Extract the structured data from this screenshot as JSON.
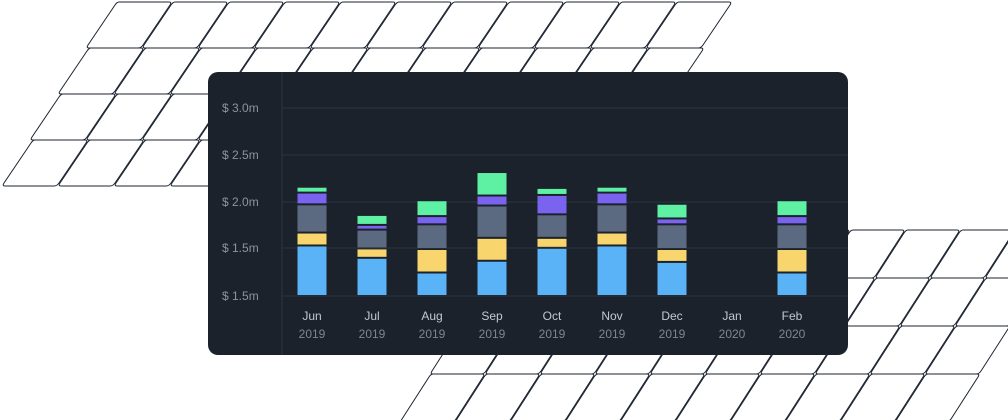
{
  "chart_data": {
    "type": "bar",
    "stacked": true,
    "y_tick_labels": [
      "$ 3.0m",
      "$ 2.5m",
      "$ 2.0m",
      "$ 1.5m",
      "$ 1.5m"
    ],
    "categories": [
      {
        "month": "Jun",
        "year": "2019"
      },
      {
        "month": "Jul",
        "year": "2019"
      },
      {
        "month": "Aug",
        "year": "2019"
      },
      {
        "month": "Sep",
        "year": "2019"
      },
      {
        "month": "Oct",
        "year": "2019"
      },
      {
        "month": "Nov",
        "year": "2019"
      },
      {
        "month": "Dec",
        "year": "2019"
      },
      {
        "month": "Jan",
        "year": "2020"
      },
      {
        "month": "Feb",
        "year": "2020"
      }
    ],
    "series": [
      {
        "color": "#5ab3f7",
        "values": [
          0.86,
          0.65,
          0.4,
          0.6,
          0.82,
          0.86,
          0.58,
          0,
          0.4
        ]
      },
      {
        "color": "#f8d66d",
        "values": [
          0.22,
          0.16,
          0.4,
          0.39,
          0.17,
          0.22,
          0.22,
          0,
          0.4
        ]
      },
      {
        "color": "#5b6a80",
        "values": [
          0.48,
          0.32,
          0.42,
          0.55,
          0.4,
          0.48,
          0.42,
          0,
          0.42
        ]
      },
      {
        "color": "#7a63ee",
        "values": [
          0.2,
          0.08,
          0.14,
          0.17,
          0.33,
          0.2,
          0.1,
          0,
          0.14
        ]
      },
      {
        "color": "#5ef0a3",
        "values": [
          0.1,
          0.17,
          0.27,
          0.4,
          0.12,
          0.1,
          0.25,
          0,
          0.27
        ]
      }
    ],
    "axis_value_range": [
      0,
      3.2
    ],
    "grid": true,
    "legend": "none"
  }
}
